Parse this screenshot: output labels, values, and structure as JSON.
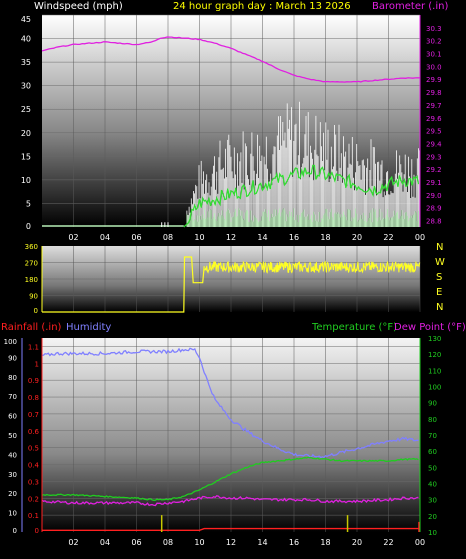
{
  "header": {
    "left": "Windspeed (mph)",
    "center": "24 hour graph day : March 13 2026",
    "right": "Barometer (.in)"
  },
  "wind_dir_letters": [
    "N",
    "W",
    "S",
    "E",
    "N"
  ],
  "bottom_labels": {
    "rain": "Rainfall (.in)",
    "humidity": "Humidity",
    "temp": "Temperature (°F)",
    "dew": "Dew Point (°F)"
  },
  "colors": {
    "barometer": "#e020e0",
    "wind_gust": "#ffffff",
    "wind_avg": "#33dd33",
    "wind_low": "#b8f0b8",
    "wind_dir": "#ffff22",
    "humidity": "#8080ff",
    "temperature": "#20cc20",
    "dew_point": "#e020e0",
    "rain": "#ff2020",
    "rain_rate": "#c8c800"
  },
  "chart_data": [
    {
      "type": "line",
      "series_labels": [
        "Windspeed (mph)",
        "Barometer (.in)"
      ],
      "x_ticks": [
        "02",
        "04",
        "06",
        "08",
        "10",
        "12",
        "14",
        "16",
        "18",
        "20",
        "22",
        "00"
      ],
      "y_left": {
        "ticks": [
          0,
          5,
          10,
          15,
          20,
          25,
          30,
          35,
          40,
          45
        ],
        "range": [
          0,
          45
        ]
      },
      "y_right": {
        "ticks": [
          28.8,
          28.9,
          29.0,
          29.1,
          29.2,
          29.3,
          29.4,
          29.5,
          29.6,
          29.7,
          29.8,
          29.9,
          30.0,
          30.1,
          30.2,
          30.3
        ],
        "range": [
          28.75,
          30.4
        ]
      },
      "x_range_hours": [
        0,
        24
      ],
      "barometer": {
        "x": [
          0,
          1,
          2,
          3,
          4,
          5,
          6,
          7,
          7.5,
          8,
          9,
          10,
          11,
          12,
          13,
          14,
          15,
          16,
          17,
          18,
          19,
          20,
          21,
          22,
          23,
          24
        ],
        "y": [
          30.12,
          30.15,
          30.17,
          30.18,
          30.19,
          30.18,
          30.17,
          30.19,
          30.22,
          30.23,
          30.22,
          30.21,
          30.18,
          30.14,
          30.09,
          30.04,
          29.98,
          29.93,
          29.9,
          29.88,
          29.88,
          29.88,
          29.89,
          29.9,
          29.91,
          29.91
        ]
      },
      "wind_avg": {
        "x": [
          0,
          9,
          9.3,
          9.6,
          10,
          11,
          12,
          13,
          14,
          15,
          16,
          17,
          18,
          19,
          20,
          21,
          22,
          23,
          24
        ],
        "y": [
          0,
          0,
          1.5,
          3,
          5,
          6,
          7,
          8,
          9,
          10,
          11,
          12,
          11,
          10,
          9,
          8,
          9,
          10,
          9.5
        ]
      },
      "wind_gust_envelope": {
        "x": [
          9,
          10,
          11,
          12,
          13,
          14,
          15,
          16,
          17,
          18,
          19,
          20,
          21,
          22,
          23,
          24
        ],
        "y": [
          3,
          14,
          18,
          21,
          22,
          23,
          25,
          28,
          26,
          24,
          22,
          20,
          19,
          17,
          18,
          17
        ]
      },
      "wind_pre_gusts": {
        "x": [
          7.6,
          7.8,
          8.0
        ],
        "y": [
          1,
          1,
          1
        ]
      }
    },
    {
      "type": "line",
      "series_labels": [
        "Wind direction"
      ],
      "y_ticks": [
        0,
        90,
        180,
        270,
        360
      ],
      "y_range": [
        0,
        360
      ],
      "x_range_hours": [
        0,
        24
      ],
      "step": {
        "x": [
          0,
          9,
          9.05,
          9.5,
          9.6,
          10.2,
          10.3,
          24
        ],
        "y": [
          0,
          0,
          300,
          300,
          160,
          160,
          250,
          250
        ]
      },
      "noise_band": {
        "x_start": 10.3,
        "x_end": 24,
        "mean": 245,
        "amplitude": 30
      }
    },
    {
      "type": "line",
      "series_labels": [
        "Rainfall (.in)",
        "Humidity",
        "Temperature (°F)",
        "Dew Point (°F)"
      ],
      "x_ticks": [
        "02",
        "04",
        "06",
        "08",
        "10",
        "12",
        "14",
        "16",
        "18",
        "20",
        "22",
        "00"
      ],
      "y_humidity": {
        "ticks": [
          0,
          10,
          20,
          30,
          40,
          50,
          60,
          70,
          80,
          90,
          100
        ],
        "range": [
          0,
          100
        ]
      },
      "y_rain": {
        "ticks": [
          0,
          0.1,
          0.2,
          0.3,
          0.4,
          0.5,
          0.6,
          0.7,
          0.8,
          0.9,
          1.0,
          1.1
        ],
        "range": [
          0,
          1.15
        ]
      },
      "y_temp": {
        "ticks": [
          10,
          20,
          30,
          40,
          50,
          60,
          70,
          80,
          90,
          100,
          110,
          120,
          130
        ],
        "range": [
          10,
          130
        ]
      },
      "x_range_hours": [
        0,
        24
      ],
      "humidity": {
        "x": [
          0,
          1,
          2,
          4,
          6,
          8,
          9,
          9.7,
          10,
          10.5,
          11,
          12,
          13,
          14,
          15,
          16,
          17,
          18,
          19,
          20,
          21,
          22,
          23,
          24
        ],
        "y": [
          91,
          92,
          92,
          92,
          93,
          93,
          94,
          94,
          90,
          78,
          68,
          58,
          52,
          47,
          43,
          40,
          39,
          39,
          41,
          43,
          45,
          47,
          48,
          47
        ]
      },
      "temperature": {
        "x": [
          0,
          1,
          2,
          4,
          6,
          7,
          8,
          9,
          10,
          11,
          12,
          13,
          14,
          15,
          16,
          17,
          18,
          19,
          20,
          21,
          22,
          23,
          24
        ],
        "y": [
          33,
          33,
          33,
          32,
          31,
          30,
          30,
          32,
          36,
          41,
          46,
          50,
          53,
          54,
          55,
          56,
          55,
          54,
          54,
          54,
          54,
          55,
          55
        ]
      },
      "dew_point": {
        "x": [
          0,
          2,
          4,
          6,
          7,
          8,
          9,
          10,
          11,
          12,
          13,
          14,
          15,
          16,
          17,
          18,
          19,
          20,
          22,
          23,
          24
        ],
        "y": [
          29,
          28,
          28,
          28,
          27,
          28,
          29,
          31,
          32,
          31,
          31,
          30,
          30,
          30,
          30,
          29,
          29,
          29,
          30,
          31,
          31
        ]
      },
      "rain_total": {
        "x": [
          0,
          10,
          10.3,
          24
        ],
        "y": [
          0.01,
          0.01,
          0.02,
          0.02
        ]
      },
      "rain_rate_marks": {
        "x": [
          7.6,
          19.4,
          24
        ],
        "y": [
          0.1,
          0.1,
          0.06
        ]
      }
    }
  ]
}
